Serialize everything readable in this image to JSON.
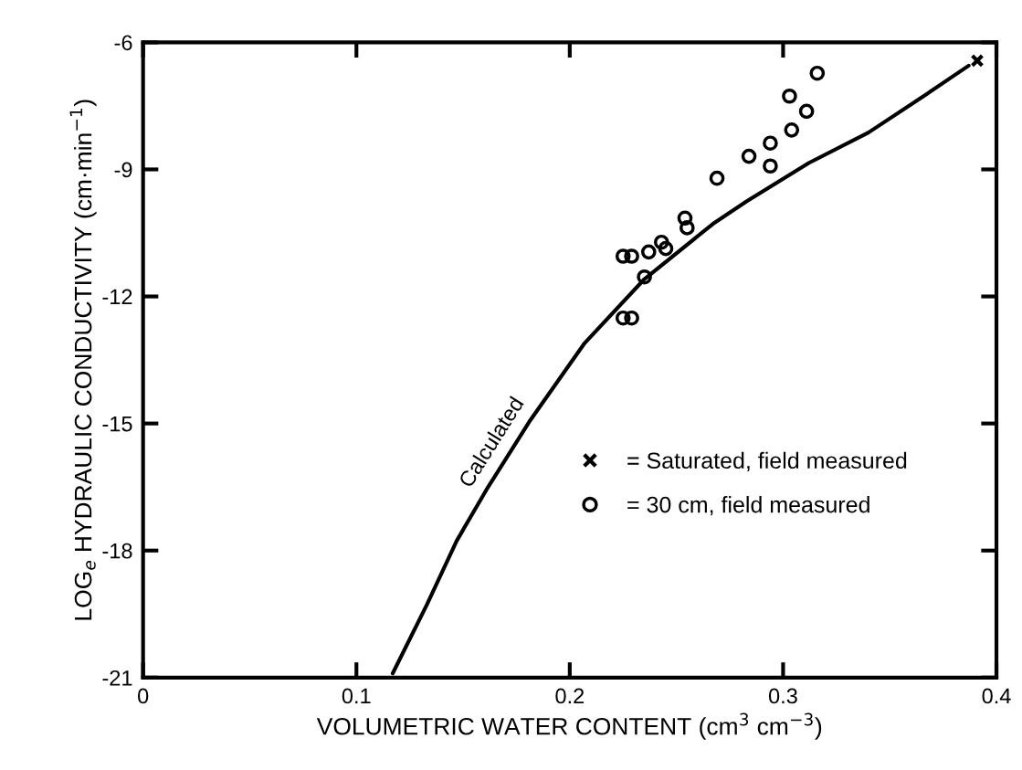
{
  "chart_data": {
    "type": "scatter",
    "xlabel": "VOLUMETRIC WATER CONTENT (cm$^{3}$ cm$^{−3}$)",
    "ylabel": "LOG$_{e}$ HYDRAULIC CONDUCTIVITY (cm·min$^{−1}$)",
    "xlim": [
      0,
      0.4
    ],
    "xticks": [
      0,
      0.1,
      0.2,
      0.3,
      0.4
    ],
    "ylim": [
      -21,
      -6
    ],
    "yticks": [
      -21,
      -18,
      -15,
      -12,
      -9,
      -6
    ],
    "grid": false,
    "legend": "lower right",
    "series": [
      {
        "name": "Calculated",
        "type": "line",
        "color": "#000000",
        "marker": "none",
        "line_style": "solid",
        "x": [
          0.117,
          0.133,
          0.147,
          0.161,
          0.181,
          0.207,
          0.235,
          0.267,
          0.283,
          0.312,
          0.34,
          0.367,
          0.387
        ],
        "values": [
          -20.9,
          -19.28,
          -17.77,
          -16.56,
          -14.96,
          -13.1,
          -11.59,
          -10.29,
          -9.75,
          -8.85,
          -8.13,
          -7.23,
          -6.55
        ]
      },
      {
        "name": "= Saturated, field measured",
        "color": "#000000",
        "marker": "cross",
        "x": [
          0.391
        ],
        "values": [
          -6.43
        ]
      },
      {
        "name": "= 30 cm, field measured",
        "color": "#000000",
        "marker": "circle",
        "x": [
          0.316,
          0.303,
          0.311,
          0.304,
          0.294,
          0.294,
          0.284,
          0.269,
          0.254,
          0.255,
          0.243,
          0.245,
          0.237,
          0.225,
          0.229,
          0.235,
          0.225,
          0.229
        ],
        "values": [
          -6.73,
          -7.27,
          -7.63,
          -8.07,
          -8.38,
          -8.92,
          -8.69,
          -9.21,
          -10.15,
          -10.38,
          -10.72,
          -10.87,
          -10.95,
          -11.05,
          -11.05,
          -11.54,
          -12.51,
          -12.51
        ]
      }
    ]
  }
}
